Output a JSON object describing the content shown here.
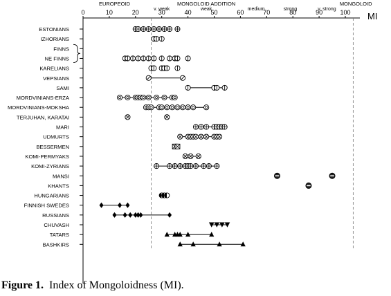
{
  "chart_data": {
    "type": "scatter",
    "title": "",
    "xlabel": "MI",
    "xlim": [
      0,
      105
    ],
    "xticks": [
      0,
      10,
      20,
      30,
      40,
      50,
      60,
      70,
      80,
      90,
      100
    ],
    "dashed_lines_at": [
      26,
      103
    ],
    "zones": [
      {
        "label": "EUROPEOID",
        "x": 12
      },
      {
        "label": "MONGOLOID ADDITION",
        "x": 47
      },
      {
        "label": "MONGOLOID",
        "x": 104
      }
    ],
    "subzones": [
      {
        "label": "v. weak",
        "x": 30
      },
      {
        "label": "weak",
        "x": 47
      },
      {
        "label": "medium",
        "x": 66
      },
      {
        "label": "strong",
        "x": 79
      },
      {
        "label": "v. strong",
        "x": 93
      }
    ],
    "groups": [
      {
        "name": "ESTONIANS",
        "marker": "circle-cross",
        "values": [
          20,
          21,
          23,
          25,
          27,
          29,
          31,
          33,
          36
        ],
        "connected": false
      },
      {
        "name": "IZHORIANS",
        "marker": "circle-bar",
        "values": [
          27,
          28,
          30
        ],
        "connected": false
      },
      {
        "name": "FINNS",
        "marker": "none",
        "values": [],
        "connected": false
      },
      {
        "name": "NE FINNS",
        "marker": "circle-bar",
        "values": [
          16,
          17,
          19,
          21,
          23,
          25,
          27,
          30,
          33,
          35,
          36,
          40
        ],
        "connected": false
      },
      {
        "name": "KARELIANS",
        "marker": "circle-bar",
        "values": [
          26,
          27,
          30,
          31,
          32,
          36
        ],
        "connected": false
      },
      {
        "name": "VEPSIANS",
        "marker": "circle-slash",
        "values": [
          25,
          38
        ],
        "connected": true
      },
      {
        "name": "SAMI",
        "marker": "circle-bar",
        "values": [
          40,
          50,
          51,
          54
        ],
        "connected": true
      },
      {
        "name": "MORDVINIANS-ERZA",
        "marker": "circle-dot",
        "values": [
          14,
          17,
          20,
          21,
          22,
          23,
          25,
          28,
          31,
          34,
          35
        ],
        "connected": true
      },
      {
        "name": "MORDVINIANS-MOKSHA",
        "marker": "circle-dot",
        "values": [
          24,
          25,
          26,
          29,
          30,
          32,
          34,
          36,
          38,
          40,
          42,
          47
        ],
        "connected": true
      },
      {
        "name": "TERJUHAN, KARATAI",
        "marker": "circle-x",
        "values": [
          17,
          32
        ],
        "connected": false
      },
      {
        "name": "MARI",
        "marker": "circle-cross",
        "values": [
          43,
          45,
          47,
          50,
          51,
          52,
          53,
          54
        ],
        "connected": true
      },
      {
        "name": "UDMURTS",
        "marker": "circle-x",
        "values": [
          37,
          40,
          41,
          42,
          43,
          45,
          47,
          50,
          51,
          52
        ],
        "connected": true
      },
      {
        "name": "BESSERMEN",
        "marker": "box-x",
        "values": [
          35,
          36
        ],
        "connected": true
      },
      {
        "name": "KOMI-PERMYAKS",
        "marker": "circle-x",
        "values": [
          39,
          41,
          44
        ],
        "connected": true
      },
      {
        "name": "KOMI-ZYRIANS",
        "marker": "circle-cross",
        "values": [
          28,
          33,
          35,
          37,
          39,
          40,
          41,
          43,
          46,
          48,
          51
        ],
        "connected": true
      },
      {
        "name": "MANSI",
        "marker": "circle-dash",
        "values": [
          74,
          95
        ],
        "connected": false
      },
      {
        "name": "KHANTS",
        "marker": "circle-dash",
        "values": [
          86
        ],
        "connected": false
      },
      {
        "name": "HUNGARIANS",
        "marker": "circle-half",
        "values": [
          30,
          31,
          32
        ],
        "connected": false
      },
      {
        "name": "FINNISH SWEDES",
        "marker": "diamond",
        "values": [
          7,
          14,
          17
        ],
        "connected": true
      },
      {
        "name": "RUSSIANS",
        "marker": "diamond",
        "values": [
          12,
          16,
          18,
          20,
          21,
          22,
          33
        ],
        "connected": true
      },
      {
        "name": "CHUVASH",
        "marker": "triangle-down",
        "values": [
          49,
          51,
          53,
          55
        ],
        "connected": true
      },
      {
        "name": "TATARS",
        "marker": "triangle",
        "values": [
          32,
          35,
          36,
          37,
          40,
          49
        ],
        "connected": true
      },
      {
        "name": "BASHKIRS",
        "marker": "triangle",
        "values": [
          37,
          42,
          52,
          61
        ],
        "connected": true
      }
    ]
  },
  "caption": {
    "label": "Figure 1.",
    "text": "Index of Mongoloidness (MI)."
  }
}
